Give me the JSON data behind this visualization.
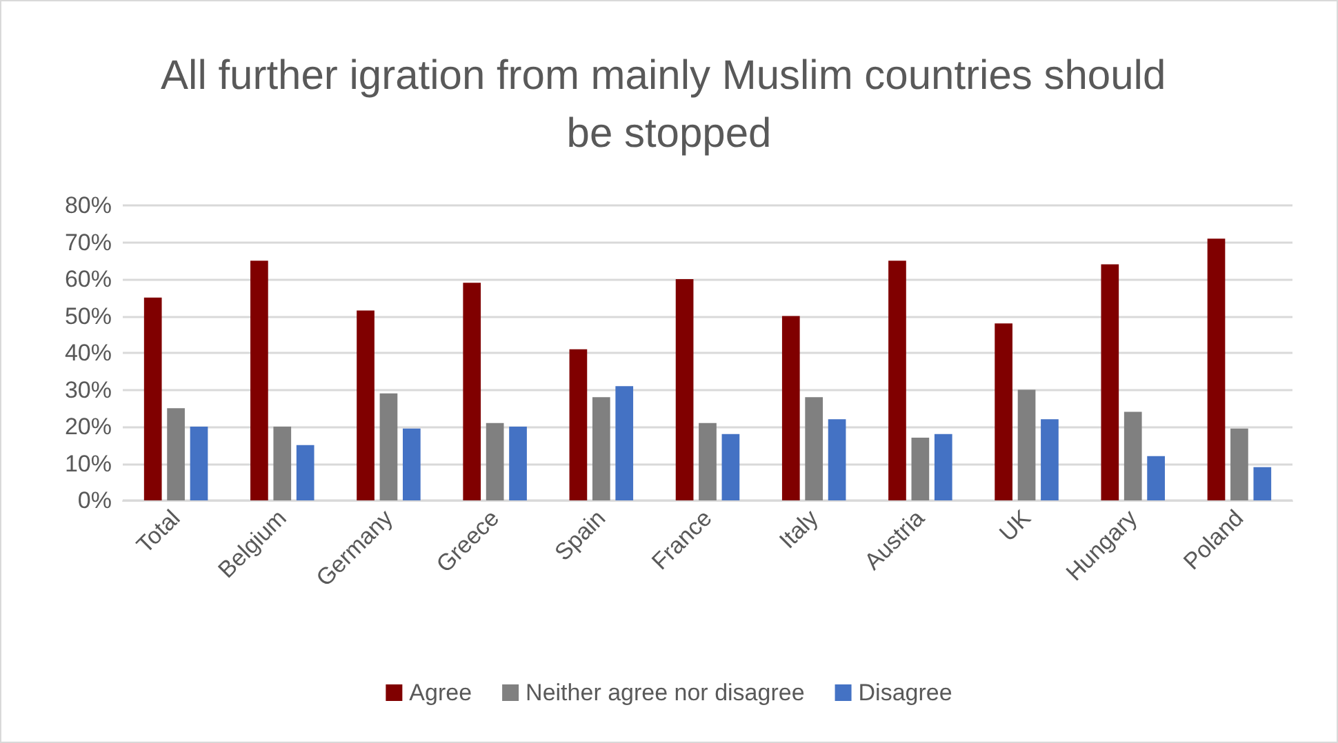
{
  "chart_data": {
    "type": "bar",
    "title": "All further igration from mainly Muslim countries should be stopped",
    "categories": [
      "Total",
      "Belgium",
      "Germany",
      "Greece",
      "Spain",
      "France",
      "Italy",
      "Austria",
      "UK",
      "Hungary",
      "Poland"
    ],
    "series": [
      {
        "name": "Agree",
        "color": "#800000",
        "values": [
          55,
          65,
          51.5,
          59,
          41,
          60,
          50,
          65,
          48,
          64,
          71
        ]
      },
      {
        "name": "Neither agree nor disagree",
        "color": "#808080",
        "values": [
          25,
          20,
          29,
          21,
          28,
          21,
          28,
          17,
          30,
          24,
          19.5
        ]
      },
      {
        "name": "Disagree",
        "color": "#4472c4",
        "values": [
          20,
          15,
          19.5,
          20,
          31,
          18,
          22,
          18,
          22,
          12,
          9
        ]
      }
    ],
    "ylim": [
      0,
      80
    ],
    "yticks": [
      {
        "value": 0,
        "label": "0%"
      },
      {
        "value": 10,
        "label": "10%"
      },
      {
        "value": 20,
        "label": "20%"
      },
      {
        "value": 30,
        "label": "30%"
      },
      {
        "value": 40,
        "label": "40%"
      },
      {
        "value": 50,
        "label": "50%"
      },
      {
        "value": 60,
        "label": "60%"
      },
      {
        "value": 70,
        "label": "70%"
      },
      {
        "value": 80,
        "label": "80%"
      }
    ],
    "grid": "y",
    "legend": "bottom"
  }
}
